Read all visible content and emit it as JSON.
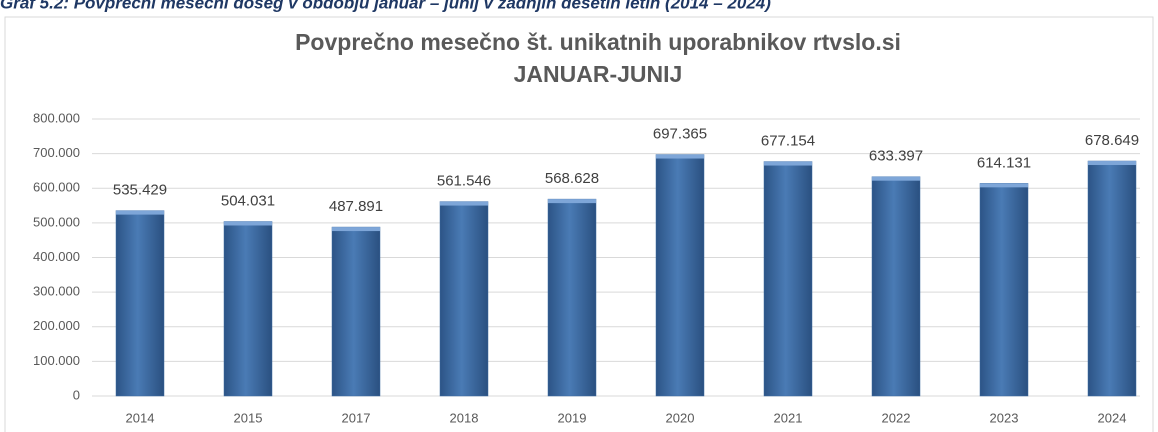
{
  "caption": "Graf 5.2: Povprečni mesečni doseg v obdobju januar – junij v zadnjih desetih letih (2014 – 2024)",
  "chart_data": {
    "type": "bar",
    "title": "Povprečno mesečno št. unikatnih uporabnikov rtvslo.si",
    "subtitle": "JANUAR-JUNIJ",
    "categories": [
      "2014",
      "2015",
      "2017",
      "2018",
      "2019",
      "2020",
      "2021",
      "2022",
      "2023",
      "2024"
    ],
    "values": [
      535429,
      504031,
      487891,
      561546,
      568628,
      697365,
      677154,
      633397,
      614131,
      678649
    ],
    "value_labels": [
      "535.429",
      "504.031",
      "487.891",
      "561.546",
      "568.628",
      "697.365",
      "677.154",
      "633.397",
      "614.131",
      "678.649"
    ],
    "color": "#3c6aa0",
    "ylim": [
      0,
      800000
    ],
    "yticks": [
      0,
      {
        "value": 100000,
        "label": "100.000"
      },
      {
        "value": 200000,
        "label": "200.000"
      },
      {
        "value": 300000,
        "label": "300.000"
      },
      {
        "value": 400000,
        "label": "400.000"
      },
      {
        "value": 500000,
        "label": "500.000"
      },
      {
        "value": 600000,
        "label": "600.000"
      },
      {
        "value": 700000,
        "label": "700.000"
      },
      {
        "value": 800000,
        "label": "800.000"
      }
    ],
    "grid": true
  }
}
